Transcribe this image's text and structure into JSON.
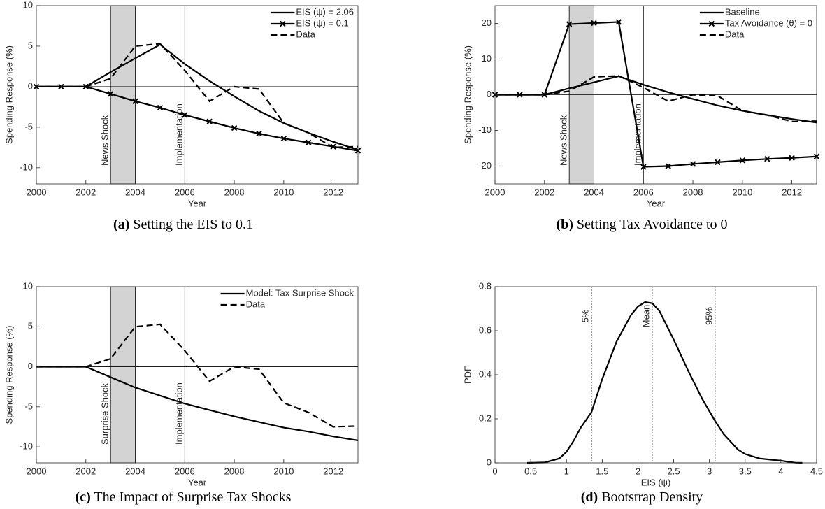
{
  "chart_data": [
    {
      "type": "line",
      "caption_tag": "(a)",
      "caption": "Setting the EIS to 0.1",
      "xlabel": "Year",
      "ylabel": "Spending Response (%)",
      "x": [
        2000,
        2001,
        2002,
        2003,
        2004,
        2005,
        2006,
        2007,
        2008,
        2009,
        2010,
        2011,
        2012,
        2013
      ],
      "xlim": [
        2000,
        2013
      ],
      "xticks": [
        2000,
        2002,
        2004,
        2006,
        2008,
        2010,
        2012
      ],
      "ylim": [
        -12,
        10
      ],
      "yticks": [
        -10,
        -5,
        0,
        5,
        10
      ],
      "shade": [
        2003,
        2004
      ],
      "vline": 2006,
      "hline": 0,
      "annotations": [
        {
          "text": "News Shock",
          "x": 2003
        },
        {
          "text": "Implementation",
          "x": 2006
        }
      ],
      "legend": "northeast",
      "series": [
        {
          "name": "EIS (ψ) = 2.06",
          "color": "#000000",
          "style": "solid",
          "marker": "none",
          "values": [
            0,
            0,
            0,
            1.8,
            3.5,
            5.2,
            2.8,
            0.7,
            -1.2,
            -3.0,
            -4.5,
            -5.7,
            -6.8,
            -7.8
          ]
        },
        {
          "name": "EIS (ψ) = 0.1",
          "color": "#000000",
          "style": "solid",
          "marker": "x",
          "values": [
            0,
            0,
            0,
            -0.9,
            -1.8,
            -2.6,
            -3.5,
            -4.3,
            -5.1,
            -5.8,
            -6.4,
            -6.9,
            -7.4,
            -7.9
          ]
        },
        {
          "name": "Data",
          "color": "#000000",
          "style": "dashed",
          "marker": "none",
          "values": [
            0,
            0,
            0,
            1.0,
            5.0,
            5.3,
            2.0,
            -1.8,
            0.0,
            -0.3,
            -4.5,
            -5.7,
            -7.5,
            -7.4
          ]
        }
      ]
    },
    {
      "type": "line",
      "caption_tag": "(b)",
      "caption": "Setting Tax Avoidance to 0",
      "xlabel": "Year",
      "ylabel": "Spending Response (%)",
      "x": [
        2000,
        2001,
        2002,
        2003,
        2004,
        2005,
        2006,
        2007,
        2008,
        2009,
        2010,
        2011,
        2012,
        2013
      ],
      "xlim": [
        2000,
        2013
      ],
      "xticks": [
        2000,
        2002,
        2004,
        2006,
        2008,
        2010,
        2012
      ],
      "ylim": [
        -25,
        25
      ],
      "yticks": [
        -20,
        -10,
        0,
        10,
        20
      ],
      "shade": [
        2003,
        2004
      ],
      "vline": 2006,
      "hline": 0,
      "annotations": [
        {
          "text": "News Shock",
          "x": 2003
        },
        {
          "text": "Implementation",
          "x": 2006
        }
      ],
      "legend": "northeast",
      "series": [
        {
          "name": "Baseline",
          "color": "#000000",
          "style": "solid",
          "marker": "none",
          "values": [
            0,
            0,
            0,
            1.8,
            3.5,
            5.2,
            2.8,
            0.7,
            -1.2,
            -3.0,
            -4.5,
            -5.7,
            -6.8,
            -7.8
          ]
        },
        {
          "name": "Tax Avoidance (θ) = 0",
          "color": "#000000",
          "style": "solid",
          "marker": "x",
          "values": [
            0,
            0,
            0,
            19.8,
            20.1,
            20.4,
            -20.2,
            -20.0,
            -19.4,
            -18.9,
            -18.4,
            -18.0,
            -17.7,
            -17.3
          ]
        },
        {
          "name": "Data",
          "color": "#000000",
          "style": "dashed",
          "marker": "none",
          "values": [
            0,
            0,
            0,
            1.0,
            5.0,
            5.3,
            2.0,
            -1.8,
            0.0,
            -0.3,
            -4.5,
            -5.7,
            -7.5,
            -7.4
          ]
        }
      ]
    },
    {
      "type": "line",
      "caption_tag": "(c)",
      "caption": "The Impact of Surprise Tax Shocks",
      "xlabel": "Year",
      "ylabel": "Spending Response (%)",
      "x": [
        2000,
        2001,
        2002,
        2003,
        2004,
        2005,
        2006,
        2007,
        2008,
        2009,
        2010,
        2011,
        2012,
        2013
      ],
      "xlim": [
        2000,
        2013
      ],
      "xticks": [
        2000,
        2002,
        2004,
        2006,
        2008,
        2010,
        2012
      ],
      "ylim": [
        -12,
        10
      ],
      "yticks": [
        -10,
        -5,
        0,
        5,
        10
      ],
      "shade": [
        2003,
        2004
      ],
      "vline": 2006,
      "hline": 0,
      "annotations": [
        {
          "text": "Surprise Shock",
          "x": 2003
        },
        {
          "text": "Implementation",
          "x": 2006
        }
      ],
      "legend": "northeast",
      "series": [
        {
          "name": "Model: Tax Surprise Shock",
          "color": "#000000",
          "style": "solid",
          "marker": "none",
          "values": [
            0,
            0,
            0,
            -1.3,
            -2.6,
            -3.6,
            -4.6,
            -5.4,
            -6.2,
            -6.9,
            -7.6,
            -8.1,
            -8.7,
            -9.2
          ]
        },
        {
          "name": "Data",
          "color": "#000000",
          "style": "dashed",
          "marker": "none",
          "values": [
            0,
            0,
            0,
            1.0,
            5.0,
            5.3,
            2.0,
            -1.8,
            0.0,
            -0.3,
            -4.5,
            -5.7,
            -7.5,
            -7.4
          ]
        }
      ]
    },
    {
      "type": "density",
      "caption_tag": "(d)",
      "caption": "Bootstrap Density",
      "xlabel": "EIS (ψ)",
      "ylabel": "PDF",
      "x": [
        0.45,
        0.7,
        0.9,
        1.0,
        1.1,
        1.2,
        1.35,
        1.5,
        1.7,
        1.9,
        2.0,
        2.1,
        2.2,
        2.3,
        2.5,
        2.7,
        2.9,
        3.08,
        3.2,
        3.4,
        3.5,
        3.7,
        3.9,
        4.0,
        4.1,
        4.2,
        4.3
      ],
      "xlim": [
        0,
        4.5
      ],
      "xticks": [
        0,
        0.5,
        1,
        1.5,
        2,
        2.5,
        3,
        3.5,
        4,
        4.5
      ],
      "ylim": [
        0,
        0.8
      ],
      "yticks": [
        0,
        0.2,
        0.4,
        0.6,
        0.8
      ],
      "vlines": [
        {
          "x": 1.35,
          "label": "5%"
        },
        {
          "x": 2.2,
          "label": "Mean"
        },
        {
          "x": 3.08,
          "label": "95%"
        }
      ],
      "series": [
        {
          "color": "#000000",
          "style": "solid",
          "marker": "none",
          "values": [
            0,
            0.002,
            0.02,
            0.05,
            0.1,
            0.16,
            0.23,
            0.38,
            0.55,
            0.67,
            0.71,
            0.73,
            0.725,
            0.69,
            0.56,
            0.42,
            0.29,
            0.19,
            0.13,
            0.06,
            0.04,
            0.02,
            0.013,
            0.01,
            0.005,
            0.001,
            0
          ]
        }
      ]
    }
  ]
}
